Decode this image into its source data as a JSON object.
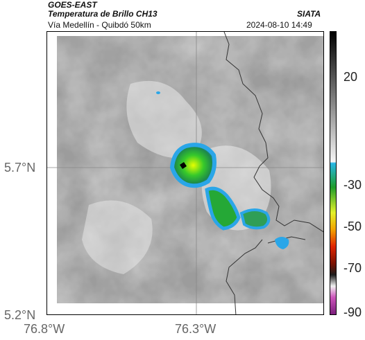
{
  "header": {
    "satellite": "GOES-EAST",
    "product": "Temperatura de Brillo CH13",
    "org": "SIATA",
    "route": "Vía Medellín - Quibdó 50km",
    "datetime": "2024-08-10 14:49"
  },
  "axes": {
    "lon_ticks": [
      "76.8°W",
      "76.3°W"
    ],
    "lat_ticks": [
      "5.7°N",
      "5.2°N"
    ]
  },
  "colorbar": {
    "ticks": [
      "20",
      "-30",
      "-50",
      "-70",
      "-90"
    ]
  },
  "colors": {
    "cloud_cold": "#2db82d",
    "cloud_edge": "#2aa6e8",
    "cloud_core": "#d7f200",
    "background_gray": "#9a9a9a"
  },
  "map": {
    "features": [
      "border-lines",
      "gridlines",
      "convective-cells",
      "marker-point"
    ]
  }
}
